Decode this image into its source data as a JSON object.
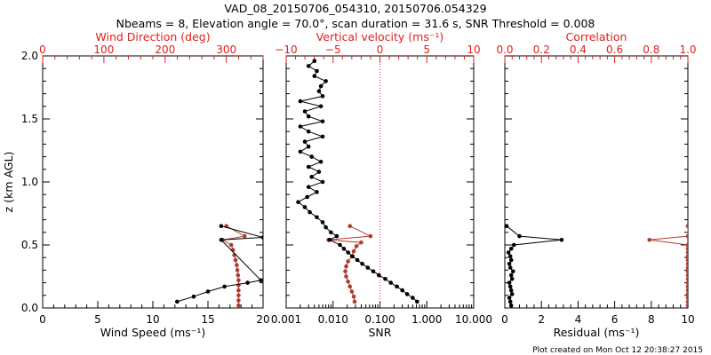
{
  "title_line1": "VAD_08_20150706_054310, 20150706.054329",
  "title_line2": "Nbeams = 8, Elevation angle = 70.0°, scan duration = 31.6 s, SNR Threshold = 0.008",
  "footer": "Plot created on Mon Oct 12 20:38:27 2015",
  "colors": {
    "primary": "#000000",
    "secondary": "#b03a2e",
    "top_axis": "#e0201a"
  },
  "chart_data": [
    {
      "type": "scatter",
      "name": "wind-panel",
      "ylabel": "z (km AGL)",
      "ylim": [
        0,
        2
      ],
      "yticks": [
        "0.0",
        "0.5",
        "1.0",
        "1.5",
        "2.0"
      ],
      "bottom_axis": {
        "label": "Wind Speed (ms⁻¹)",
        "lim": [
          0,
          20
        ],
        "ticks": [
          "0",
          "5",
          "10",
          "15",
          "20"
        ]
      },
      "top_axis": {
        "label": "Wind Direction (deg)",
        "lim": [
          0,
          360
        ],
        "ticks": [
          "0",
          "100",
          "200",
          "300"
        ]
      },
      "series": [
        {
          "name": "Wind Speed",
          "axis": "bottom",
          "color": "#000000",
          "z": [
            0.05,
            0.09,
            0.13,
            0.17,
            0.2,
            0.22,
            0.54,
            0.56,
            0.65
          ],
          "values": [
            12.2,
            13.7,
            15.0,
            16.5,
            18.6,
            19.8,
            16.2,
            20.0,
            16.2
          ]
        },
        {
          "name": "Wind Direction",
          "axis": "top",
          "color": "#b03a2e",
          "z": [
            0.02,
            0.06,
            0.1,
            0.14,
            0.18,
            0.22,
            0.26,
            0.3,
            0.34,
            0.38,
            0.42,
            0.46,
            0.5,
            0.54,
            0.57,
            0.65
          ],
          "values": [
            320,
            320,
            320,
            320,
            320,
            320,
            319,
            318,
            317,
            315,
            313,
            311,
            308,
            294,
            330,
            300
          ]
        }
      ]
    },
    {
      "type": "scatter",
      "name": "snr-panel",
      "ylim": [
        0,
        2
      ],
      "bottom_axis": {
        "label": "SNR",
        "scale": "log",
        "lim": [
          0.001,
          10
        ],
        "ticks": [
          "0.001",
          "0.010",
          "0.100",
          "1.000",
          "10.000"
        ]
      },
      "top_axis": {
        "label": "Vertical velocity (ms⁻¹)",
        "lim": [
          -10,
          10
        ],
        "ticks": [
          "−10",
          "−5",
          "0",
          "5",
          "10"
        ]
      },
      "reference_line": {
        "axis": "top",
        "value": 0,
        "style": "dotted"
      },
      "series": [
        {
          "name": "SNR",
          "axis": "bottom",
          "color": "#000000",
          "z": [
            0.05,
            0.08,
            0.11,
            0.14,
            0.17,
            0.2,
            0.23,
            0.26,
            0.29,
            0.32,
            0.35,
            0.38,
            0.41,
            0.44,
            0.47,
            0.5,
            0.54,
            0.57,
            0.6,
            0.64,
            0.68,
            0.72,
            0.76,
            0.8,
            0.84,
            0.88,
            0.92,
            0.96,
            1.0,
            1.04,
            1.08,
            1.12,
            1.16,
            1.2,
            1.24,
            1.28,
            1.32,
            1.36,
            1.4,
            1.44,
            1.48,
            1.52,
            1.56,
            1.6,
            1.64,
            1.68,
            1.72,
            1.76,
            1.8,
            1.84,
            1.88,
            1.92,
            1.96
          ],
          "values": [
            0.62,
            0.5,
            0.38,
            0.3,
            0.23,
            0.17,
            0.13,
            0.095,
            0.072,
            0.055,
            0.042,
            0.033,
            0.026,
            0.021,
            0.017,
            0.014,
            0.0085,
            0.012,
            0.009,
            0.007,
            0.006,
            0.0045,
            0.0032,
            0.0025,
            0.0018,
            0.0028,
            0.0045,
            0.003,
            0.006,
            0.0035,
            0.005,
            0.003,
            0.0055,
            0.0035,
            0.002,
            0.003,
            0.0025,
            0.006,
            0.003,
            0.002,
            0.006,
            0.003,
            0.0025,
            0.0055,
            0.002,
            0.006,
            0.005,
            0.0055,
            0.007,
            0.004,
            0.0045,
            0.003,
            0.004
          ]
        },
        {
          "name": "Vertical velocity",
          "axis": "top",
          "color": "#b03a2e",
          "z": [
            0.05,
            0.09,
            0.13,
            0.17,
            0.21,
            0.25,
            0.29,
            0.33,
            0.37,
            0.41,
            0.45,
            0.49,
            0.52,
            0.54,
            0.57,
            0.65
          ],
          "values": [
            -2.7,
            -2.8,
            -3.0,
            -3.2,
            -3.4,
            -3.6,
            -3.7,
            -3.6,
            -3.4,
            -3.0,
            -2.8,
            -2.5,
            -2.0,
            -5.5,
            -1.0,
            -3.2
          ]
        }
      ]
    },
    {
      "type": "scatter",
      "name": "residual-panel",
      "ylim": [
        0,
        2
      ],
      "bottom_axis": {
        "label": "Residual (ms⁻¹)",
        "lim": [
          0,
          10
        ],
        "ticks": [
          "0",
          "2",
          "4",
          "6",
          "8",
          "10"
        ]
      },
      "top_axis": {
        "label": "Correlation",
        "lim": [
          0,
          1
        ],
        "ticks": [
          "0.0",
          "0.2",
          "0.4",
          "0.6",
          "0.8",
          "1.0"
        ]
      },
      "series": [
        {
          "name": "Residual",
          "axis": "bottom",
          "color": "#000000",
          "z": [
            0.02,
            0.05,
            0.08,
            0.11,
            0.14,
            0.17,
            0.2,
            0.23,
            0.26,
            0.29,
            0.32,
            0.35,
            0.38,
            0.41,
            0.44,
            0.47,
            0.5,
            0.54,
            0.57,
            0.65
          ],
          "values": [
            0.35,
            0.3,
            0.25,
            0.4,
            0.35,
            0.3,
            0.25,
            0.4,
            0.35,
            0.45,
            0.3,
            0.25,
            0.35,
            0.3,
            0.2,
            0.35,
            0.5,
            3.1,
            0.8,
            0.1
          ]
        },
        {
          "name": "Correlation",
          "axis": "top",
          "color": "#b03a2e",
          "z": [
            0.02,
            0.05,
            0.08,
            0.11,
            0.14,
            0.17,
            0.2,
            0.23,
            0.26,
            0.29,
            0.32,
            0.35,
            0.38,
            0.41,
            0.44,
            0.47,
            0.5,
            0.54,
            0.57,
            0.65
          ],
          "values": [
            1.0,
            1.0,
            1.0,
            1.0,
            1.0,
            1.0,
            1.0,
            1.0,
            1.0,
            1.0,
            1.0,
            1.0,
            1.0,
            1.0,
            1.0,
            1.0,
            1.0,
            0.79,
            1.0,
            1.0
          ]
        }
      ]
    }
  ]
}
